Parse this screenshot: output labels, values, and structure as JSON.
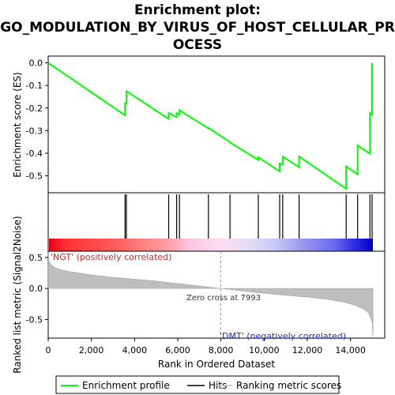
{
  "title": {
    "line1": "Enrichment plot:",
    "line2": "GO_MODULATION_BY_VIRUS_OF_HOST_CELLULAR_PR",
    "line3": "OCESS"
  },
  "colors": {
    "es_line": "#00ff00",
    "hits": "#000000",
    "metric_fill": "#bebebe",
    "pos_label": "#d62728",
    "neg_label": "#1f2fd6",
    "heat_pos": "#ff0000",
    "heat_neg": "#0000ff"
  },
  "chart_data": [
    {
      "type": "line",
      "panel": "enrichment",
      "ylabel": "Enrichment score (ES)",
      "xlim": [
        0,
        15000
      ],
      "ylim": [
        -0.575,
        0.03
      ],
      "yticks": [
        -0.5,
        -0.4,
        -0.3,
        -0.2,
        -0.1,
        0.0
      ],
      "ytick_labels": [
        "-0.5",
        "-0.4",
        "-0.3",
        "-0.2",
        "-0.1",
        "0.0"
      ],
      "series": [
        {
          "name": "Enrichment profile",
          "x": [
            0,
            3560,
            3561,
            3620,
            3621,
            5580,
            5581,
            5950,
            5951,
            6080,
            6081,
            7420,
            7421,
            8420,
            8421,
            9730,
            9731,
            10720,
            10721,
            10860,
            10861,
            11620,
            11621,
            13800,
            13801,
            14330,
            14331,
            14900,
            14901,
            15000,
            15001
          ],
          "y": [
            0.0,
            -0.232,
            -0.178,
            -0.18,
            -0.125,
            -0.248,
            -0.222,
            -0.24,
            -0.222,
            -0.23,
            -0.21,
            -0.29,
            -0.288,
            -0.35,
            -0.352,
            -0.43,
            -0.418,
            -0.48,
            -0.445,
            -0.45,
            -0.415,
            -0.462,
            -0.415,
            -0.557,
            -0.458,
            -0.493,
            -0.365,
            -0.402,
            -0.222,
            -0.23,
            0.0
          ]
        }
      ],
      "grid": false
    },
    {
      "type": "scatter",
      "panel": "hits",
      "series": [
        {
          "name": "Hits",
          "x": [
            3560,
            3620,
            5580,
            5950,
            6080,
            7420,
            8420,
            9730,
            10720,
            10860,
            11620,
            13800,
            14330,
            14900,
            15000
          ]
        }
      ]
    },
    {
      "type": "area",
      "panel": "metric",
      "ylabel": "Ranked list metric (Signal2Noise)",
      "xlabel": "Rank in Ordered Dataset",
      "xlim": [
        0,
        15000
      ],
      "ylim": [
        -0.8,
        0.6
      ],
      "xticks": [
        0,
        2000,
        4000,
        6000,
        8000,
        10000,
        12000,
        14000
      ],
      "xtick_labels": [
        "0",
        "2,000",
        "4,000",
        "6,000",
        "8,000",
        "10,000",
        "12,000",
        "14,000"
      ],
      "yticks": [
        -0.5,
        0.0,
        0.5
      ],
      "ytick_labels": [
        "-0.5",
        "0.0",
        "0.5"
      ],
      "series": [
        {
          "name": "Ranking metric scores",
          "x": [
            0,
            30,
            100,
            250,
            500,
            1000,
            2000,
            3000,
            4000,
            5000,
            6000,
            7000,
            7993,
            9000,
            10000,
            11000,
            12000,
            13000,
            13700,
            14200,
            14600,
            14850,
            15000,
            15040
          ],
          "y": [
            0.58,
            0.45,
            0.4,
            0.35,
            0.31,
            0.27,
            0.22,
            0.18,
            0.15,
            0.12,
            0.08,
            0.04,
            0.0,
            -0.04,
            -0.08,
            -0.11,
            -0.14,
            -0.18,
            -0.22,
            -0.27,
            -0.33,
            -0.4,
            -0.55,
            -0.78
          ]
        }
      ],
      "annotations": {
        "zero_cross": "Zero cross at 7993",
        "zero_cross_x": 7993,
        "positive": "'NGT' (positively correlated)",
        "negative": "'DMT' (negatively correlated)"
      }
    }
  ],
  "legend": {
    "items": [
      "Enrichment profile",
      "Hits",
      "Ranking metric scores"
    ]
  }
}
